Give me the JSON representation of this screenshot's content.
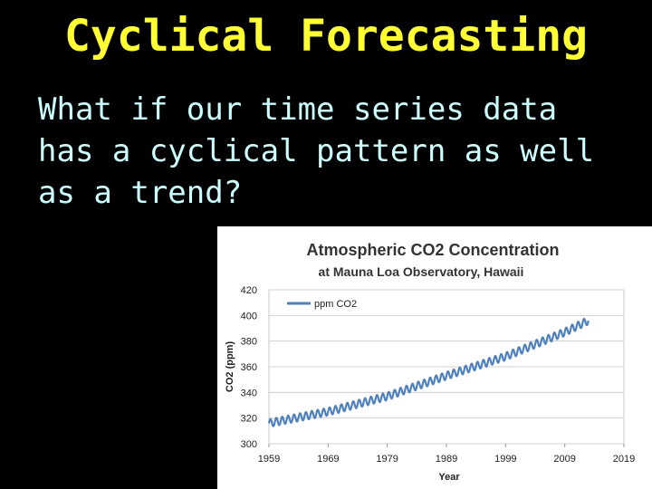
{
  "slide": {
    "title": "Cyclical Forecasting",
    "subtitle": "What if our time series data has a cyclical pattern as well as a trend?"
  },
  "chart_data": {
    "type": "line",
    "title": "Atmospheric CO2 Concentration",
    "subtitle": "at Mauna Loa Observatory, Hawaii",
    "xlabel": "Year",
    "ylabel": "CO2 (ppm)",
    "xlim": [
      1959,
      2019
    ],
    "ylim": [
      300,
      420
    ],
    "x_ticks": [
      1959,
      1969,
      1979,
      1989,
      1999,
      2009,
      2019
    ],
    "y_ticks": [
      300,
      320,
      340,
      360,
      380,
      400,
      420
    ],
    "legend": "top-left",
    "grid": "horizontal",
    "series": [
      {
        "name": "ppm CO2",
        "color": "#4f81bd",
        "trend_years": [
          1959,
          1969,
          1979,
          1989,
          1999,
          2009,
          2013
        ],
        "trend_values": [
          316,
          325,
          337,
          353,
          368,
          387,
          396
        ],
        "seasonal_amplitude": 3
      }
    ]
  }
}
